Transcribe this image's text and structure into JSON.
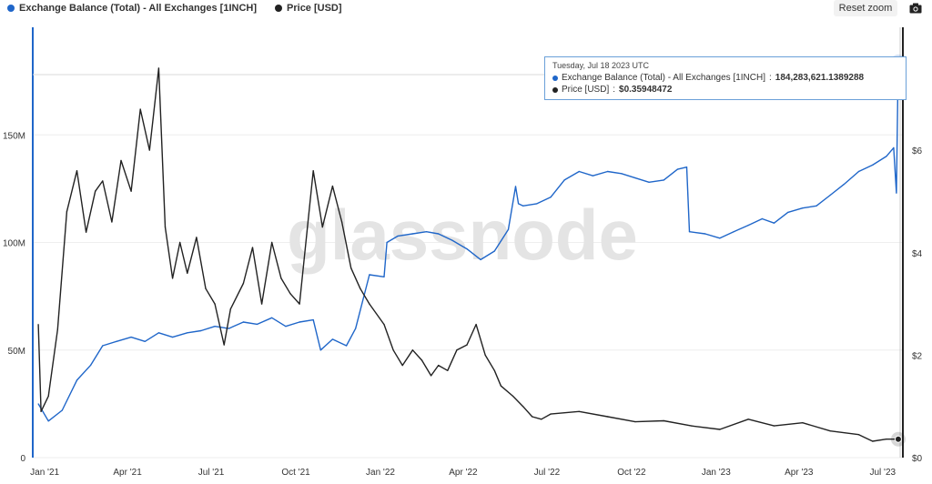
{
  "legend": {
    "series1_label": "Exchange Balance (Total) - All Exchanges [1INCH]",
    "series2_label": "Price [USD]"
  },
  "controls": {
    "reset_zoom_label": "Reset zoom",
    "camera_icon": "camera-icon"
  },
  "watermark": "glassnode",
  "tooltip": {
    "date": "Tuesday, Jul 18 2023 UTC",
    "series1_name": "Exchange Balance (Total) - All Exchanges [1INCH]",
    "series1_value": "184,283,621.1389288",
    "series2_name": "Price [USD]",
    "series2_value": "$0.35948472"
  },
  "colors": {
    "balance": "#1f66c9",
    "price": "#222222",
    "grid": "#eeeeee"
  },
  "chart_data": {
    "type": "line",
    "title": "",
    "xlabel": "",
    "ylabel_left": "",
    "ylabel_right": "",
    "x_ticks": [
      "Jan '21",
      "Apr '21",
      "Jul '21",
      "Oct '21",
      "Jan '22",
      "Apr '22",
      "Jul '22",
      "Oct '22",
      "Jan '23",
      "Apr '23",
      "Jul '23"
    ],
    "y_left_ticks": [
      "0",
      "50M",
      "100M",
      "150M"
    ],
    "y_right_ticks": [
      "$0",
      "$2",
      "$4",
      "$6"
    ],
    "y_left_range": [
      0,
      200000000
    ],
    "y_right_range": [
      0,
      8.4
    ],
    "grid": "horizontal",
    "series": [
      {
        "name": "Exchange Balance (Total) - All Exchanges [1INCH]",
        "axis": "left",
        "x": [
          "2020-12-25",
          "2021-01-05",
          "2021-01-20",
          "2021-02-05",
          "2021-02-20",
          "2021-03-05",
          "2021-03-20",
          "2021-04-05",
          "2021-04-20",
          "2021-05-05",
          "2021-05-20",
          "2021-06-05",
          "2021-06-20",
          "2021-07-05",
          "2021-07-20",
          "2021-08-05",
          "2021-08-20",
          "2021-09-05",
          "2021-09-20",
          "2021-10-05",
          "2021-10-20",
          "2021-10-28",
          "2021-11-10",
          "2021-11-25",
          "2021-12-05",
          "2021-12-20",
          "2022-01-05",
          "2022-01-08",
          "2022-01-20",
          "2022-02-05",
          "2022-02-20",
          "2022-03-05",
          "2022-03-20",
          "2022-04-05",
          "2022-04-20",
          "2022-05-05",
          "2022-05-20",
          "2022-05-28",
          "2022-05-31",
          "2022-06-05",
          "2022-06-20",
          "2022-07-05",
          "2022-07-20",
          "2022-08-05",
          "2022-08-20",
          "2022-09-05",
          "2022-09-20",
          "2022-10-05",
          "2022-10-20",
          "2022-11-05",
          "2022-11-20",
          "2022-11-30",
          "2022-12-03",
          "2022-12-20",
          "2023-01-05",
          "2023-01-20",
          "2023-02-05",
          "2023-02-20",
          "2023-03-05",
          "2023-03-20",
          "2023-04-05",
          "2023-04-20",
          "2023-05-05",
          "2023-05-20",
          "2023-06-05",
          "2023-06-20",
          "2023-07-05",
          "2023-07-13",
          "2023-07-16",
          "2023-07-18"
        ],
        "values": [
          25000000,
          17000000,
          22000000,
          36000000,
          43000000,
          52000000,
          54000000,
          56000000,
          54000000,
          58000000,
          56000000,
          58000000,
          59000000,
          61000000,
          60000000,
          63000000,
          62000000,
          65000000,
          61000000,
          63000000,
          64000000,
          50000000,
          55000000,
          52000000,
          60000000,
          85000000,
          84000000,
          100000000,
          103000000,
          104000000,
          105000000,
          104000000,
          101000000,
          97000000,
          92000000,
          96000000,
          106000000,
          126000000,
          118000000,
          117000000,
          118000000,
          121000000,
          129000000,
          133000000,
          131000000,
          133000000,
          132000000,
          130000000,
          128000000,
          129000000,
          134000000,
          135000000,
          105000000,
          104000000,
          102000000,
          105000000,
          108000000,
          111000000,
          109000000,
          114000000,
          116000000,
          117000000,
          122000000,
          127000000,
          133000000,
          136000000,
          140000000,
          144000000,
          123000000,
          184000000
        ]
      },
      {
        "name": "Price [USD]",
        "axis": "right",
        "x": [
          "2020-12-25",
          "2020-12-28",
          "2021-01-05",
          "2021-01-15",
          "2021-01-25",
          "2021-02-05",
          "2021-02-15",
          "2021-02-25",
          "2021-03-05",
          "2021-03-15",
          "2021-03-25",
          "2021-04-05",
          "2021-04-15",
          "2021-04-25",
          "2021-05-05",
          "2021-05-12",
          "2021-05-20",
          "2021-05-28",
          "2021-06-05",
          "2021-06-15",
          "2021-06-25",
          "2021-07-05",
          "2021-07-15",
          "2021-07-22",
          "2021-08-05",
          "2021-08-15",
          "2021-08-25",
          "2021-09-05",
          "2021-09-15",
          "2021-09-25",
          "2021-10-05",
          "2021-10-20",
          "2021-10-30",
          "2021-11-10",
          "2021-11-20",
          "2021-11-30",
          "2021-12-10",
          "2021-12-20",
          "2022-01-05",
          "2022-01-15",
          "2022-01-25",
          "2022-02-05",
          "2022-02-15",
          "2022-02-25",
          "2022-03-05",
          "2022-03-15",
          "2022-03-25",
          "2022-04-05",
          "2022-04-15",
          "2022-04-25",
          "2022-05-05",
          "2022-05-12",
          "2022-05-25",
          "2022-06-05",
          "2022-06-15",
          "2022-06-25",
          "2022-07-05",
          "2022-08-05",
          "2022-09-05",
          "2022-10-05",
          "2022-11-05",
          "2022-12-05",
          "2023-01-05",
          "2023-02-05",
          "2023-03-05",
          "2023-04-05",
          "2023-05-05",
          "2023-06-05",
          "2023-06-20",
          "2023-07-05",
          "2023-07-18"
        ],
        "values": [
          2.6,
          0.9,
          1.2,
          2.5,
          4.8,
          5.6,
          4.4,
          5.2,
          5.4,
          4.6,
          5.8,
          5.2,
          6.8,
          6.0,
          7.6,
          4.5,
          3.5,
          4.2,
          3.6,
          4.3,
          3.3,
          3.0,
          2.2,
          2.9,
          3.4,
          4.1,
          3.0,
          4.2,
          3.5,
          3.2,
          3.0,
          5.6,
          4.5,
          5.3,
          4.6,
          3.7,
          3.3,
          3.0,
          2.6,
          2.1,
          1.8,
          2.1,
          1.9,
          1.6,
          1.8,
          1.7,
          2.1,
          2.2,
          2.6,
          2.0,
          1.7,
          1.4,
          1.2,
          1.0,
          0.8,
          0.75,
          0.85,
          0.9,
          0.8,
          0.7,
          0.72,
          0.62,
          0.55,
          0.75,
          0.62,
          0.68,
          0.52,
          0.45,
          0.32,
          0.36,
          0.36
        ]
      }
    ]
  }
}
